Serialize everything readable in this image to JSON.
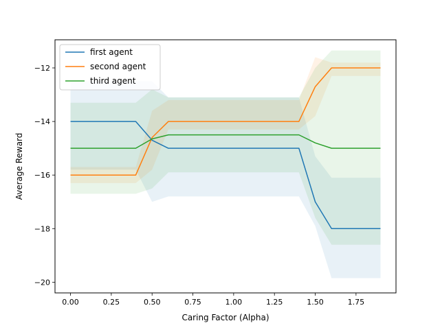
{
  "chart_data": {
    "type": "line",
    "title": "",
    "xlabel": "Caring Factor (Alpha)",
    "ylabel": "Average Reward",
    "xlim": [
      -0.095,
      1.995
    ],
    "ylim": [
      -20.4,
      -10.95
    ],
    "xticks": [
      0.0,
      0.25,
      0.5,
      0.75,
      1.0,
      1.25,
      1.5,
      1.75
    ],
    "xtick_labels": [
      "0.00",
      "0.25",
      "0.50",
      "0.75",
      "1.00",
      "1.25",
      "1.50",
      "1.75"
    ],
    "yticks": [
      -20,
      -18,
      -16,
      -14,
      -12
    ],
    "ytick_labels": [
      "−20",
      "−18",
      "−16",
      "−14",
      "−12"
    ],
    "grid": false,
    "legend_position": "upper-left",
    "x": [
      0.0,
      0.1,
      0.2,
      0.3,
      0.4,
      0.5,
      0.6,
      0.7,
      0.8,
      0.9,
      1.0,
      1.1,
      1.2,
      1.3,
      1.4,
      1.5,
      1.6,
      1.7,
      1.8,
      1.9
    ],
    "series": [
      {
        "name": "first agent",
        "color": "#1f77b4",
        "values": [
          -14,
          -14,
          -14,
          -14,
          -14,
          -14.7,
          -15,
          -15,
          -15,
          -15,
          -15,
          -15,
          -15,
          -15,
          -15,
          -17,
          -18,
          -18,
          -18,
          -18
        ],
        "upper": [
          -12.5,
          -12.5,
          -12.5,
          -12.5,
          -12.5,
          -12.5,
          -13.1,
          -13.1,
          -13.1,
          -13.1,
          -13.1,
          -13.1,
          -13.1,
          -13.1,
          -13.1,
          -15.3,
          -16.1,
          -16.1,
          -16.1,
          -16.1
        ],
        "lower": [
          -15.8,
          -15.8,
          -15.8,
          -15.8,
          -15.8,
          -17,
          -16.8,
          -16.8,
          -16.8,
          -16.8,
          -16.8,
          -16.8,
          -16.8,
          -16.8,
          -16.8,
          -17.9,
          -19.85,
          -19.85,
          -19.85,
          -19.85
        ]
      },
      {
        "name": "second agent",
        "color": "#ff7f0e",
        "values": [
          -16,
          -16,
          -16,
          -16,
          -16,
          -14.6,
          -14,
          -14,
          -14,
          -14,
          -14,
          -14,
          -14,
          -14,
          -14,
          -12.7,
          -12,
          -12,
          -12,
          -12
        ],
        "upper": [
          -15.7,
          -15.7,
          -15.7,
          -15.7,
          -15.7,
          -13.6,
          -13.2,
          -13.2,
          -13.2,
          -13.2,
          -13.2,
          -13.2,
          -13.2,
          -13.2,
          -13.2,
          -11.6,
          -11.8,
          -11.8,
          -11.8,
          -11.8
        ],
        "lower": [
          -16.3,
          -16.3,
          -16.3,
          -16.3,
          -16.3,
          -15.8,
          -14.3,
          -14.3,
          -14.3,
          -14.3,
          -14.3,
          -14.3,
          -14.3,
          -14.3,
          -14.3,
          -13.8,
          -12.3,
          -12.3,
          -12.3,
          -12.3
        ]
      },
      {
        "name": "third agent",
        "color": "#2ca02c",
        "values": [
          -15,
          -15,
          -15,
          -15,
          -15,
          -14.65,
          -14.5,
          -14.5,
          -14.5,
          -14.5,
          -14.5,
          -14.5,
          -14.5,
          -14.5,
          -14.5,
          -14.8,
          -15,
          -15,
          -15,
          -15
        ],
        "upper": [
          -13.3,
          -13.3,
          -13.3,
          -13.3,
          -13.3,
          -12.8,
          -13.1,
          -13.1,
          -13.1,
          -13.1,
          -13.1,
          -13.1,
          -13.1,
          -13.1,
          -13.1,
          -12,
          -11.35,
          -11.35,
          -11.35,
          -11.35
        ],
        "lower": [
          -16.7,
          -16.7,
          -16.7,
          -16.7,
          -16.7,
          -16.5,
          -15.9,
          -15.9,
          -15.9,
          -15.9,
          -15.9,
          -15.9,
          -15.9,
          -15.9,
          -15.9,
          -17.6,
          -18.6,
          -18.6,
          -18.6,
          -18.6
        ]
      }
    ]
  }
}
